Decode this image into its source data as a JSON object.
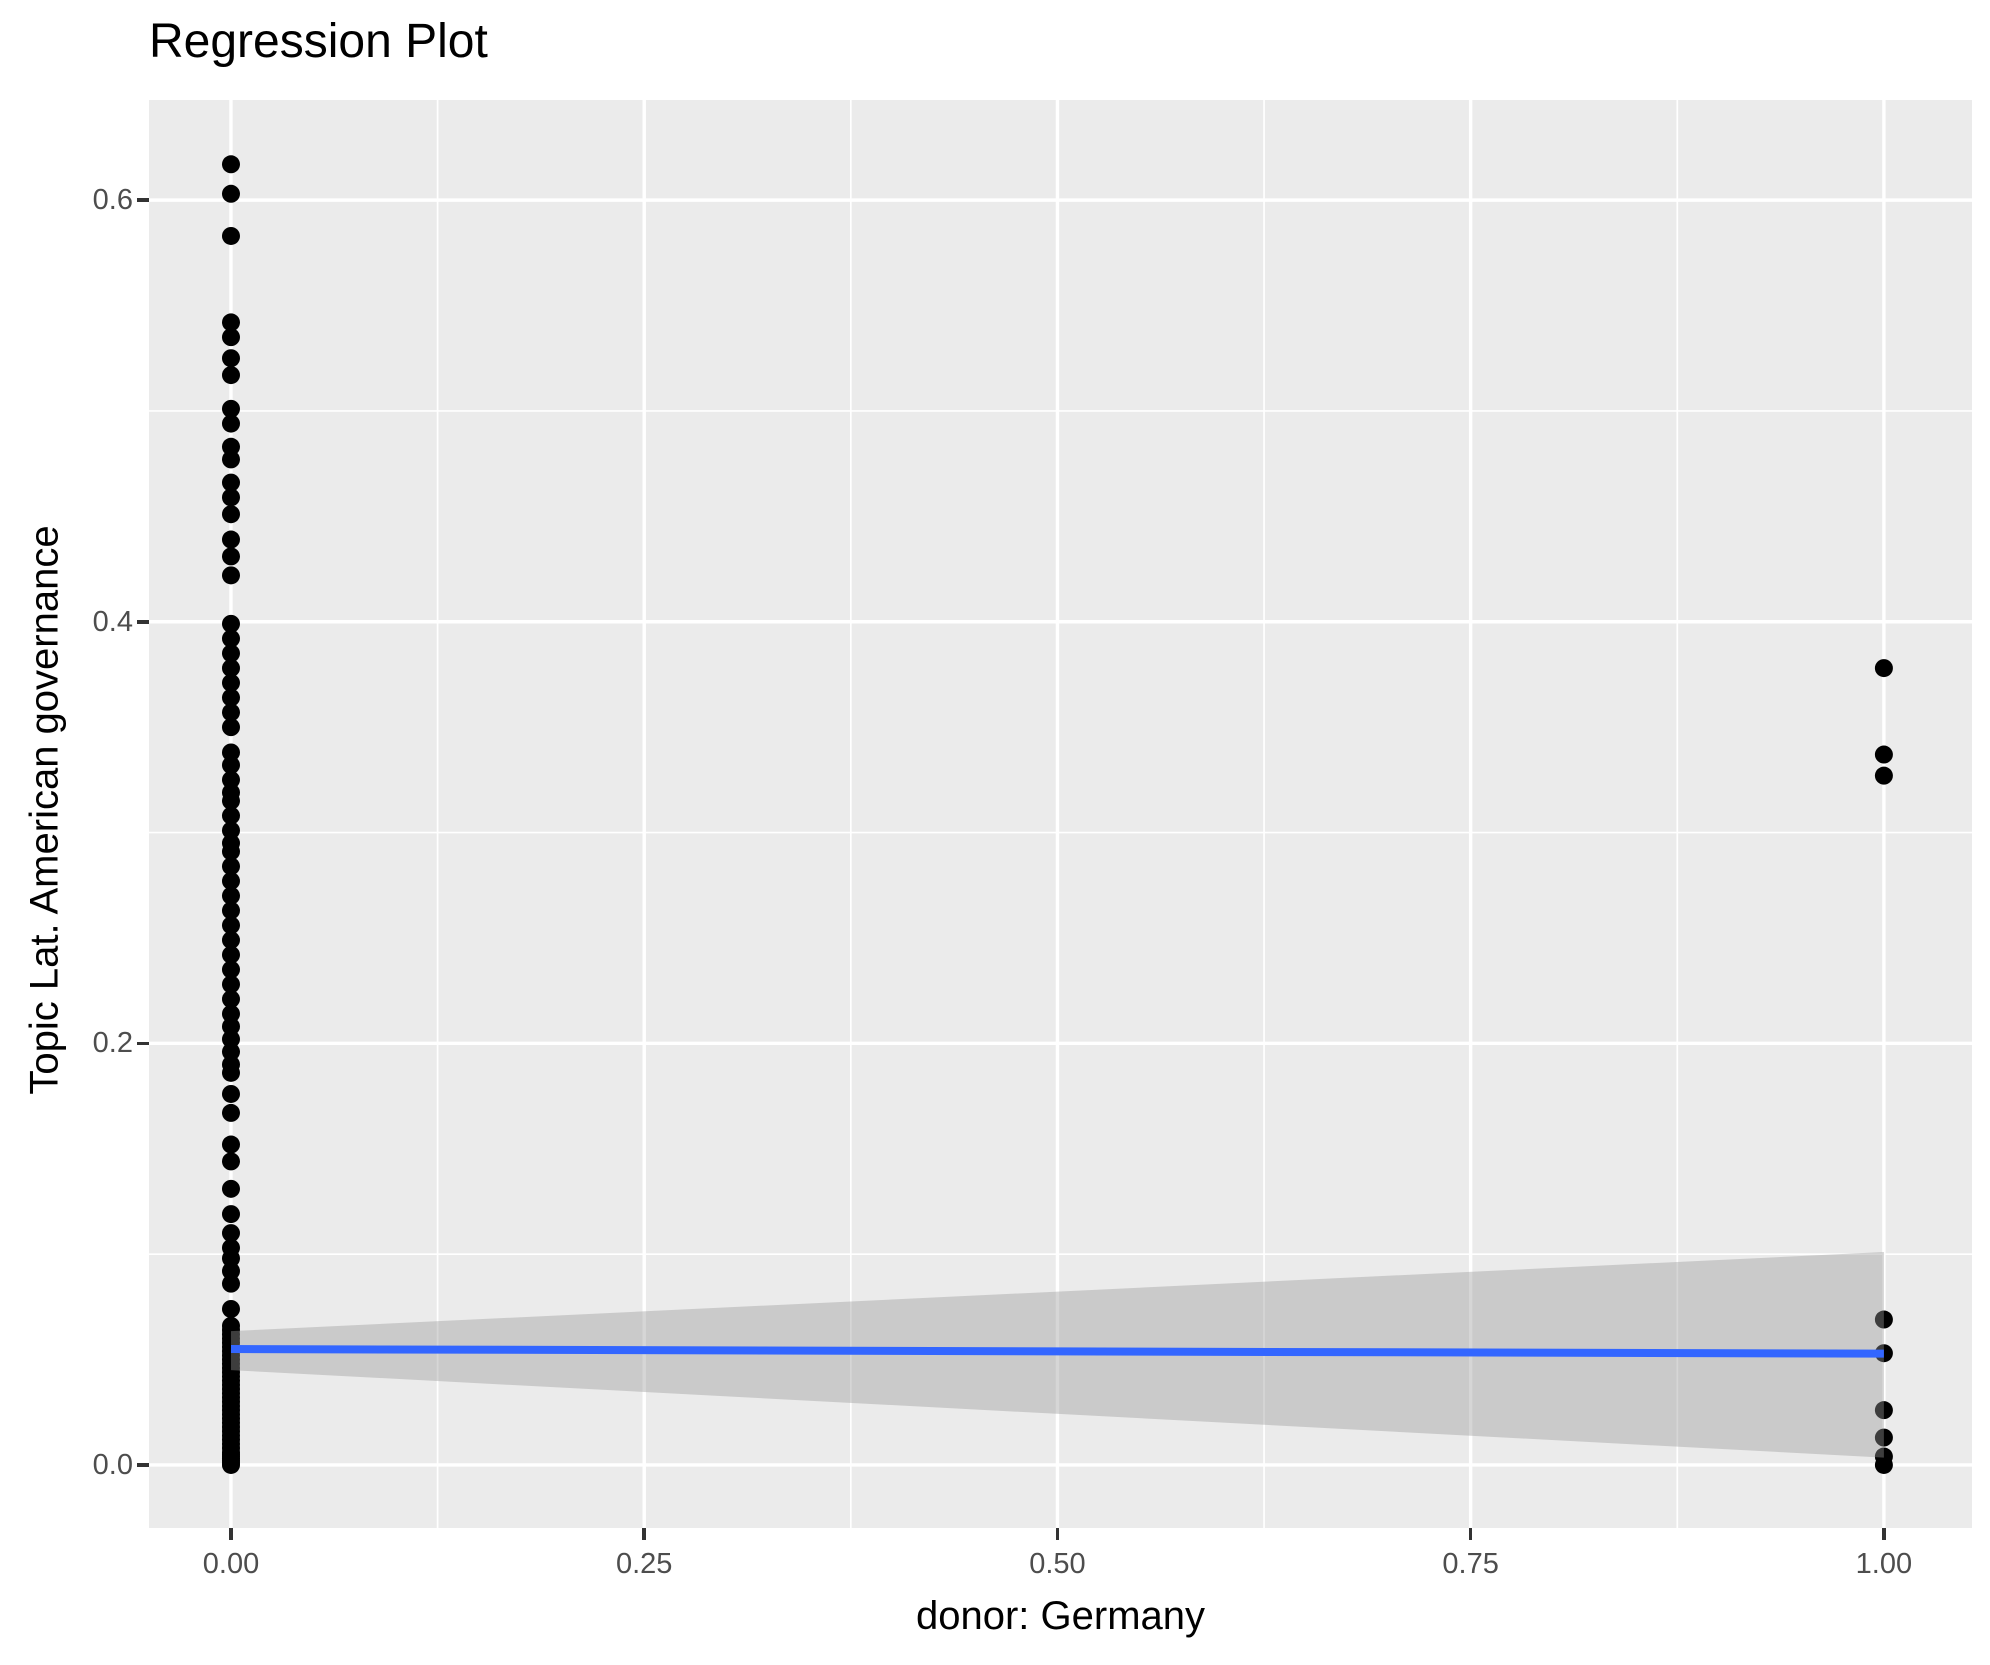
{
  "title": "Regression Plot",
  "axes": {
    "x_title": "donor: Germany",
    "y_title": "Topic Lat. American governance",
    "x_tick_labels": [
      "0.00",
      "0.25",
      "0.50",
      "0.75",
      "1.00"
    ],
    "y_tick_labels": [
      "0.0",
      "0.2",
      "0.4",
      "0.6"
    ]
  },
  "colors": {
    "panel_background": "#EBEBEB",
    "grid_line": "#FFFFFF",
    "tick_mark": "#333333",
    "tick_label": "#4D4D4D",
    "title_text": "#000000",
    "point": "#000000",
    "regression_line": "#3366FF",
    "confidence_band": "#999999"
  },
  "chart_data": {
    "type": "scatter",
    "title": "Regression Plot",
    "xlabel": "donor: Germany",
    "ylabel": "Topic Lat. American governance",
    "xlim": [
      -0.0496,
      1.0533
    ],
    "ylim": [
      -0.0299,
      0.6475
    ],
    "grid": true,
    "legend_position": "none",
    "x_major_ticks": [
      0,
      0.25,
      0.5,
      0.75,
      1.0
    ],
    "x_tick_labels": [
      "0.00",
      "0.25",
      "0.50",
      "0.75",
      "1.00"
    ],
    "x_minor_ticks": [
      0.125,
      0.375,
      0.625,
      0.875
    ],
    "y_major_ticks": [
      0,
      0.2,
      0.4,
      0.6
    ],
    "y_tick_labels": [
      "0.0",
      "0.2",
      "0.4",
      "0.6"
    ],
    "y_minor_ticks": [
      0.1,
      0.3,
      0.5
    ],
    "point_radius": 9,
    "series": [
      {
        "name": "donor: Germany = 0",
        "x": 0,
        "y_values": [
          0.617,
          0.603,
          0.583,
          0.542,
          0.535,
          0.525,
          0.517,
          0.501,
          0.494,
          0.483,
          0.477,
          0.466,
          0.459,
          0.451,
          0.439,
          0.431,
          0.422,
          0.399,
          0.392,
          0.385,
          0.378,
          0.371,
          0.364,
          0.357,
          0.35,
          0.338,
          0.332,
          0.325,
          0.319,
          0.315,
          0.308,
          0.301,
          0.295,
          0.291,
          0.284,
          0.277,
          0.27,
          0.263,
          0.256,
          0.249,
          0.242,
          0.235,
          0.228,
          0.221,
          0.214,
          0.208,
          0.202,
          0.196,
          0.19,
          0.186,
          0.176,
          0.167,
          0.152,
          0.144,
          0.131,
          0.119,
          0.11,
          0.103,
          0.098,
          0.092,
          0.086,
          0.074,
          0.066,
          0.064,
          0.062,
          0.06,
          0.058,
          0.056,
          0.054,
          0.052,
          0.05,
          0.048,
          0.046,
          0.044,
          0.042,
          0.04,
          0.038,
          0.036,
          0.034,
          0.032,
          0.03,
          0.028,
          0.026,
          0.024,
          0.022,
          0.02,
          0.018,
          0.016,
          0.014,
          0.012,
          0.01,
          0.008,
          0.006,
          0.005,
          0.004,
          0.003,
          0.002,
          0.001,
          0.0
        ]
      },
      {
        "name": "donor: Germany = 1",
        "x": 1,
        "y_values": [
          0.378,
          0.337,
          0.327,
          0.069,
          0.053,
          0.026,
          0.013,
          0.004,
          0.0
        ]
      }
    ],
    "regression_line": {
      "x": [
        0,
        1
      ],
      "y": [
        0.055,
        0.0528
      ]
    },
    "confidence_band": {
      "x": [
        0,
        1
      ],
      "upper": [
        0.0635,
        0.101
      ],
      "lower": [
        0.045,
        0.0035
      ],
      "opacity": 0.4
    }
  }
}
